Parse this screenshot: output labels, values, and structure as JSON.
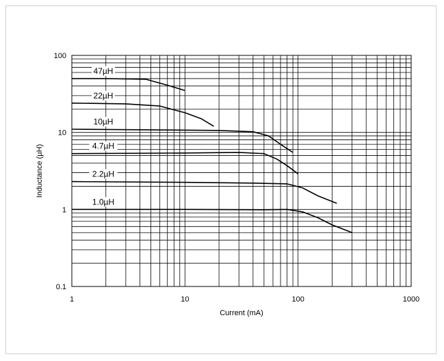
{
  "chart_data": {
    "type": "line",
    "title": "",
    "xlabel": "Current (mA)",
    "ylabel": "Inductance (µH)",
    "xscale": "log",
    "yscale": "log",
    "xlim": [
      1,
      1000
    ],
    "ylim": [
      0.1,
      100
    ],
    "grid": true,
    "xticks": [
      "1",
      "10",
      "100",
      "1000"
    ],
    "yticks": [
      "0.1",
      "1",
      "10",
      "100"
    ],
    "series": [
      {
        "name": "47µH",
        "x": [
          1,
          2,
          4.5,
          7,
          10
        ],
        "y": [
          50,
          50,
          49,
          41,
          35
        ]
      },
      {
        "name": "22µH",
        "x": [
          1,
          3,
          6,
          10,
          14,
          18
        ],
        "y": [
          24,
          23.5,
          22,
          18,
          15,
          12
        ]
      },
      {
        "name": "10µH",
        "x": [
          1,
          5,
          20,
          40,
          55,
          70,
          90
        ],
        "y": [
          11,
          10.8,
          10.6,
          10.2,
          9,
          7,
          5.5
        ]
      },
      {
        "name": "4.7µH",
        "x": [
          1,
          10,
          30,
          50,
          65,
          80,
          100
        ],
        "y": [
          5.3,
          5.4,
          5.5,
          5.3,
          4.5,
          3.7,
          2.9
        ]
      },
      {
        "name": "2.2µH",
        "x": [
          1,
          10,
          40,
          80,
          110,
          150,
          220
        ],
        "y": [
          2.3,
          2.25,
          2.2,
          2.15,
          1.9,
          1.5,
          1.2
        ]
      },
      {
        "name": "1.0µH",
        "x": [
          1,
          10,
          50,
          80,
          110,
          150,
          200,
          300
        ],
        "y": [
          1.0,
          1.0,
          0.99,
          1.0,
          0.93,
          0.78,
          0.63,
          0.5
        ]
      }
    ]
  }
}
